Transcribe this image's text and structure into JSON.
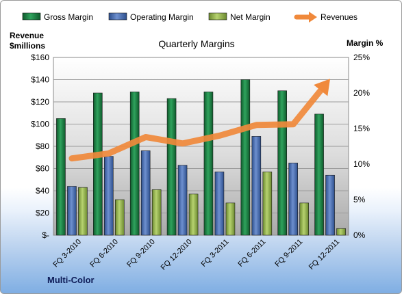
{
  "chart_data": {
    "type": "bar",
    "title": "Quarterly Margins",
    "categories": [
      "FQ 3-2010",
      "FQ 6-2010",
      "FQ 9-2010",
      "FQ 12-2010",
      "FQ 3-2011",
      "FQ 6-2011",
      "FQ 9-2011",
      "FQ 12-2011"
    ],
    "series": [
      {
        "name": "Gross Margin",
        "type": "bar",
        "axis": "left",
        "values": [
          105,
          128,
          129,
          123,
          129,
          140,
          130,
          109
        ],
        "color": "#1e8a4a"
      },
      {
        "name": "Operating Margin",
        "type": "bar",
        "axis": "left",
        "values": [
          44,
          71,
          76,
          63,
          57,
          89,
          65,
          54
        ],
        "color": "#4f74b8"
      },
      {
        "name": "Net Margin",
        "type": "bar",
        "axis": "left",
        "values": [
          43,
          32,
          41,
          37,
          29,
          57,
          29,
          6
        ],
        "color": "#9cbc55"
      },
      {
        "name": "Revenues",
        "type": "line",
        "axis": "right",
        "values": [
          10.8,
          11.5,
          13.8,
          12.9,
          14.0,
          15.5,
          15.6,
          22.0
        ],
        "color": "#f0893b"
      }
    ],
    "ylabel": "Revenue $millions",
    "ylabel_lines": [
      "Revenue",
      "$millions"
    ],
    "y2label": "Margin %",
    "ylim": [
      0,
      160
    ],
    "y2lim": [
      0,
      25
    ],
    "yticks": [
      "$-",
      "$20",
      "$40",
      "$60",
      "$80",
      "$100",
      "$120",
      "$140",
      "$160"
    ],
    "y2ticks": [
      "0%",
      "5%",
      "10%",
      "15%",
      "20%",
      "25%"
    ],
    "grid": true,
    "legend_position": "top",
    "footer": "Multi-Color"
  }
}
